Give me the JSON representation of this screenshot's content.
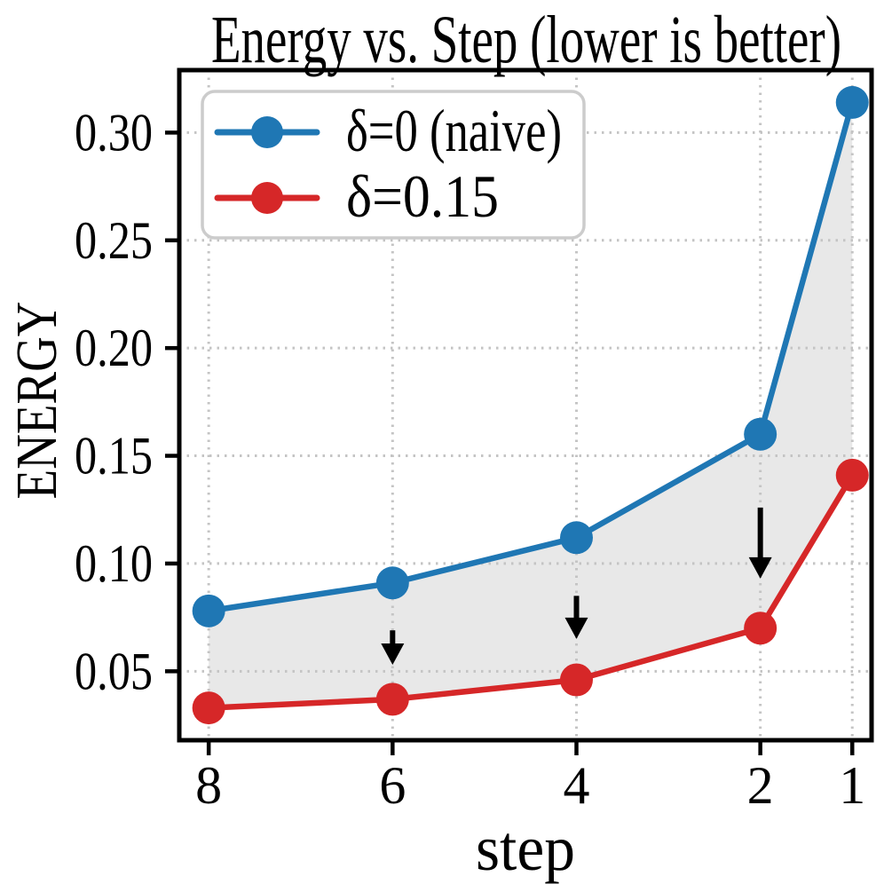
{
  "chart_data": {
    "type": "line",
    "title": "Energy vs. Step (lower is better)",
    "xlabel": "step",
    "ylabel": "ENERGY",
    "x": [
      8,
      6,
      4,
      2,
      1
    ],
    "x_axis": {
      "inverted": true,
      "ticks": [
        8,
        6,
        4,
        2,
        1
      ],
      "tick_labels": [
        "8",
        "6",
        "4",
        "2",
        "1"
      ],
      "lim": [
        8.32,
        0.79
      ]
    },
    "y_axis": {
      "ticks": [
        0.05,
        0.1,
        0.15,
        0.2,
        0.25,
        0.3
      ],
      "tick_labels": [
        "0.05",
        "0.10",
        "0.15",
        "0.20",
        "0.25",
        "0.30"
      ],
      "lim": [
        0.018,
        0.329
      ]
    },
    "grid": true,
    "grid_style": "dotted",
    "series": [
      {
        "name": "δ=0 (naive)",
        "color": "#1f77b4",
        "values": [
          0.078,
          0.091,
          0.112,
          0.16,
          0.314
        ]
      },
      {
        "name": "δ=0.15",
        "color": "#d62728",
        "values": [
          0.033,
          0.037,
          0.046,
          0.07,
          0.141
        ]
      }
    ],
    "fill_between": {
      "between": [
        "δ=0 (naive)",
        "δ=0.15"
      ],
      "color": "#e8e8e8"
    },
    "arrows": [
      {
        "x": 6,
        "y_from": 0.069,
        "y_to": 0.053,
        "direction": "down",
        "color": "#000000"
      },
      {
        "x": 4,
        "y_from": 0.085,
        "y_to": 0.065,
        "direction": "down",
        "color": "#000000"
      },
      {
        "x": 2,
        "y_from": 0.126,
        "y_to": 0.093,
        "direction": "down",
        "color": "#000000"
      }
    ],
    "legend": {
      "position": "upper left"
    }
  }
}
